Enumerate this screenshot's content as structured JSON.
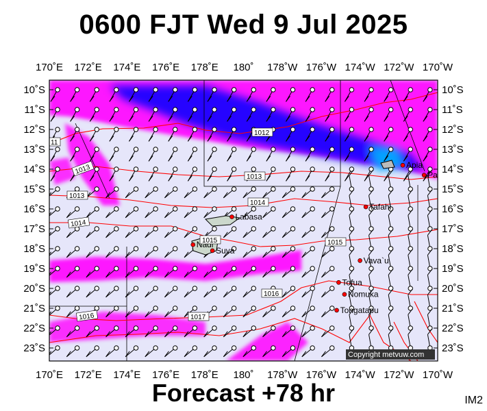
{
  "title": "0600 FJT Wed 9 Jul 2025",
  "footer": "Forecast +78 hr",
  "image_code": "IM2",
  "copyright": "Copyright metvuw.com",
  "map": {
    "lon_labels": [
      "170˚E",
      "172˚E",
      "174˚E",
      "176˚E",
      "178˚E",
      "180˚",
      "178˚W",
      "176˚W",
      "174˚W",
      "172˚W",
      "170˚W"
    ],
    "lat_labels": [
      "10˚S",
      "11˚S",
      "12˚S",
      "13˚S",
      "14˚S",
      "15˚S",
      "16˚S",
      "17˚S",
      "18˚S",
      "19˚S",
      "20˚S",
      "21˚S",
      "22˚S",
      "23˚S"
    ],
    "places": [
      {
        "name": "Apia",
        "lon": -171.8,
        "lat": -13.8
      },
      {
        "name": "Pago Pago",
        "lon": -170.7,
        "lat": -14.3
      },
      {
        "name": "Tafahi",
        "lon": -173.7,
        "lat": -15.9
      },
      {
        "name": "Labasa",
        "lon": 179.4,
        "lat": -16.4
      },
      {
        "name": "Nadi",
        "lon": 177.4,
        "lat": -17.8
      },
      {
        "name": "Suva",
        "lon": 178.4,
        "lat": -18.1
      },
      {
        "name": "Vava`u",
        "lon": -174.0,
        "lat": -18.6
      },
      {
        "name": "Tofua",
        "lon": -175.1,
        "lat": -19.7
      },
      {
        "name": "Nomuka",
        "lon": -174.8,
        "lat": -20.3
      },
      {
        "name": "Tongatapu",
        "lon": -175.2,
        "lat": -21.1
      }
    ],
    "isobar_labels": [
      "11",
      "1012",
      "1013",
      "1013",
      "1013",
      "1014",
      "1014",
      "1015",
      "1015",
      "1016",
      "1016",
      "1017"
    ],
    "colors": {
      "background": "#e6e6fa",
      "rain_light": "#ff00ff",
      "rain_heavy": "#0000ff",
      "isobar": "#ff0000",
      "wind": "#000000"
    }
  }
}
